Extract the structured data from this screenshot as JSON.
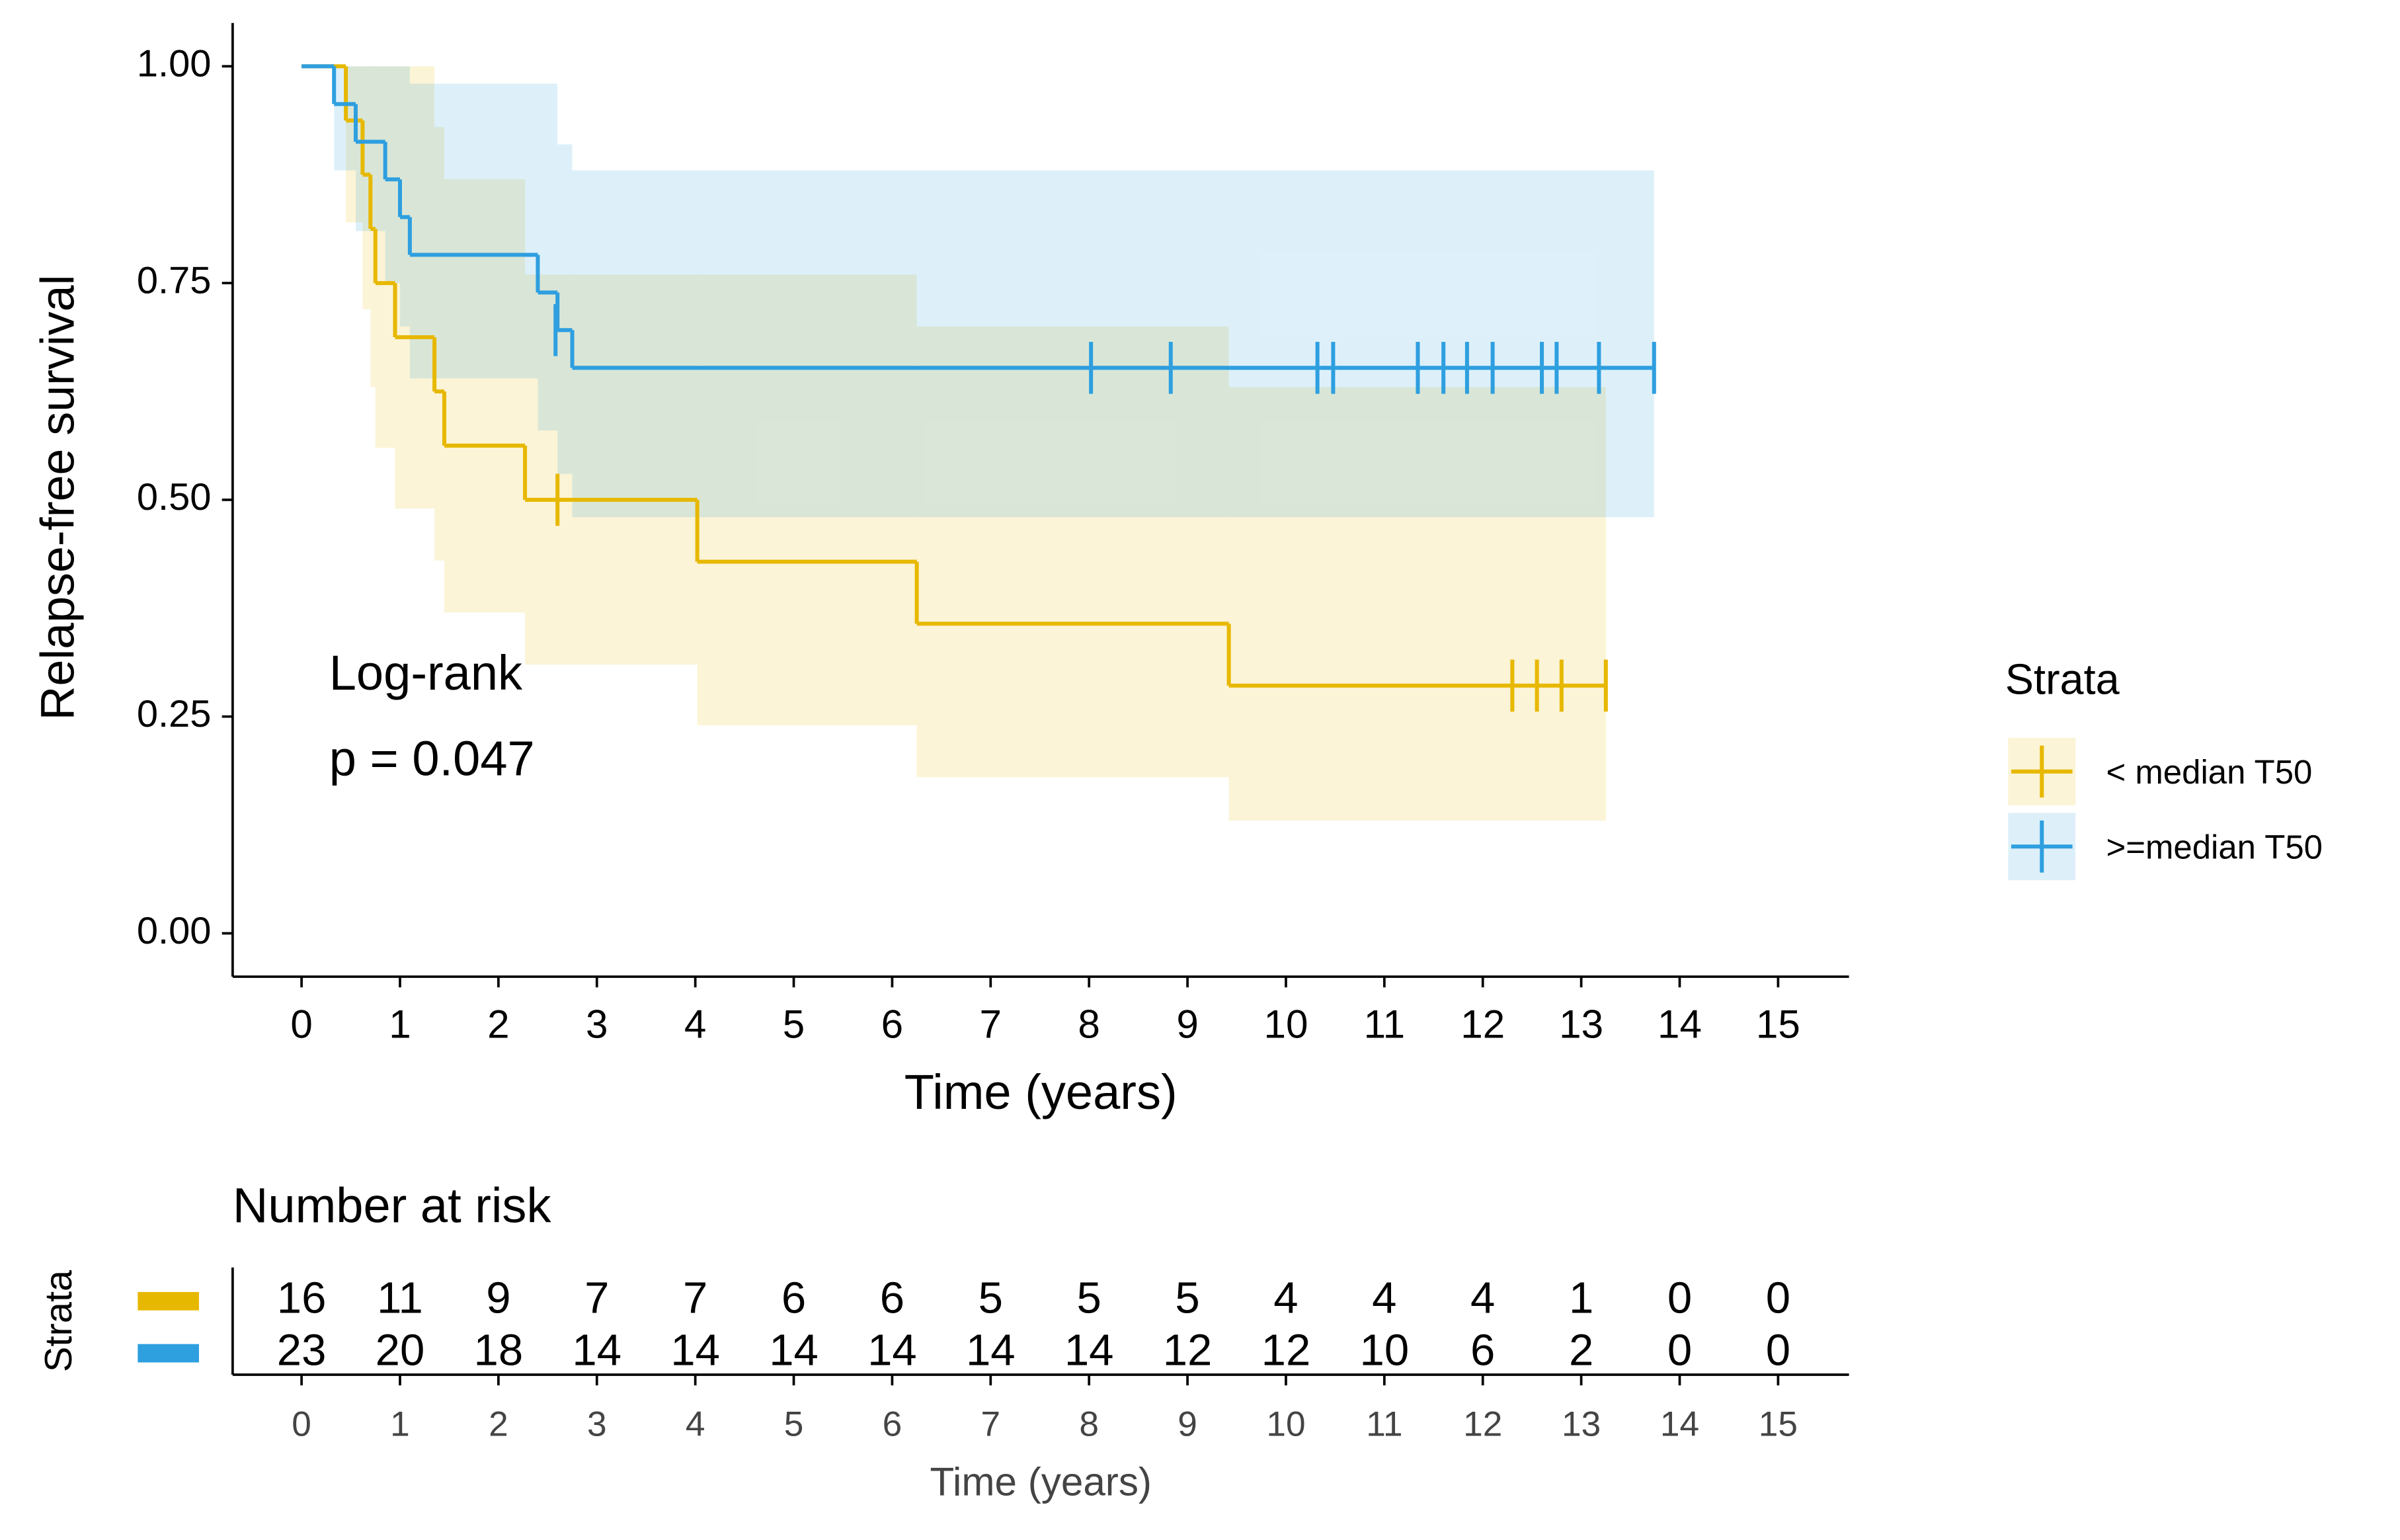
{
  "chart_data": {
    "type": "kaplan-meier",
    "ylabel": "Relapse-free survival",
    "xlabel": "Time (years)",
    "xlim": [
      -0.7,
      15.72
    ],
    "ylim": [
      -0.05,
      1.05
    ],
    "xticks": [
      0,
      1,
      2,
      3,
      4,
      5,
      6,
      7,
      8,
      9,
      10,
      11,
      12,
      13,
      14,
      15
    ],
    "yticks": [
      {
        "value": 0,
        "label": "0.00"
      },
      {
        "value": 0.25,
        "label": "0.25"
      },
      {
        "value": 0.5,
        "label": "0.50"
      },
      {
        "value": 0.75,
        "label": "0.75"
      },
      {
        "value": 1,
        "label": "1.00"
      }
    ],
    "annotations": [
      "Log-rank",
      "p = 0.047"
    ],
    "legend_title": "Strata",
    "legend_position": "right",
    "series": [
      {
        "name": "< median T50",
        "color": "#E7B800",
        "x": [
          0,
          0.45,
          0.62,
          0.7,
          0.75,
          0.95,
          1.35,
          1.45,
          2.27,
          4.02,
          6.25,
          9.42
        ],
        "values": [
          1,
          0.9375,
          0.875,
          0.8125,
          0.75,
          0.6875,
          0.625,
          0.5625,
          0.5,
          0.4286,
          0.3571,
          0.2857
        ],
        "lower": [
          1,
          0.82,
          0.72,
          0.63,
          0.56,
          0.49,
          0.43,
          0.37,
          0.31,
          0.24,
          0.18,
          0.13
        ],
        "upper": [
          1,
          1,
          1,
          1,
          1,
          1,
          0.93,
          0.87,
          0.76,
          0.76,
          0.7,
          0.63
        ],
        "censor_x": [
          2.6,
          12.3,
          12.55,
          12.8,
          13.25
        ],
        "censor_values": [
          0.5,
          0.2857,
          0.2857,
          0.2857,
          0.2857
        ]
      },
      {
        "name": ">=median T50",
        "color": "#2E9FDF",
        "x": [
          0,
          0.33,
          0.55,
          0.85,
          1.0,
          1.1,
          2.4,
          2.6,
          2.75
        ],
        "values": [
          1,
          0.9565,
          0.913,
          0.8696,
          0.8261,
          0.7826,
          0.7391,
          0.6957,
          0.6522
        ],
        "lower": [
          1,
          0.88,
          0.81,
          0.75,
          0.7,
          0.64,
          0.58,
          0.53,
          0.48
        ],
        "upper": [
          1,
          1,
          1,
          1,
          1,
          0.98,
          0.98,
          0.91,
          0.88
        ],
        "censor_x": [
          2.58,
          8.02,
          8.83,
          10.32,
          10.48,
          11.34,
          11.6,
          11.84,
          12.1,
          12.6,
          12.75,
          13.18,
          13.74
        ],
        "censor_values": [
          0.6957,
          0.6522,
          0.6522,
          0.6522,
          0.6522,
          0.6522,
          0.6522,
          0.6522,
          0.6522,
          0.6522,
          0.6522,
          0.6522,
          0.6522
        ]
      }
    ],
    "risk_table": {
      "title": "Number at risk",
      "ylabel": "Strata",
      "xlabel": "Time (years)",
      "xticks": [
        0,
        1,
        2,
        3,
        4,
        5,
        6,
        7,
        8,
        9,
        10,
        11,
        12,
        13,
        14,
        15
      ],
      "rows": [
        [
          16,
          11,
          9,
          7,
          7,
          6,
          6,
          5,
          5,
          5,
          4,
          4,
          4,
          1,
          0,
          0
        ],
        [
          23,
          20,
          18,
          14,
          14,
          14,
          14,
          14,
          14,
          12,
          12,
          10,
          6,
          2,
          0,
          0
        ]
      ]
    }
  }
}
